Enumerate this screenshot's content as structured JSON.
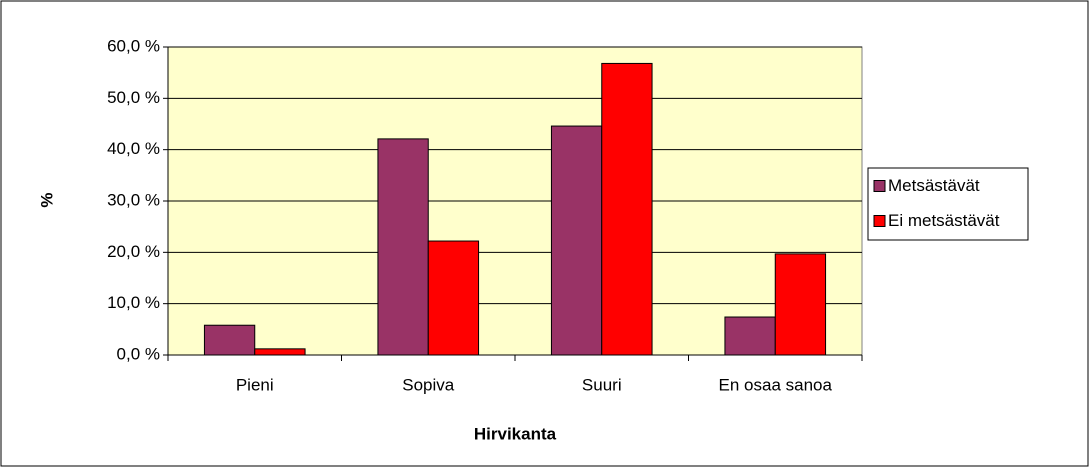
{
  "chart_data": {
    "type": "bar",
    "x_label": "Hirvikanta",
    "y_label": "%",
    "categories": [
      "Pieni",
      "Sopiva",
      "Suuri",
      "En osaa sanoa"
    ],
    "series": [
      {
        "name": "Metsästävät",
        "color": "#993366",
        "values": [
          5.8,
          42.1,
          44.6,
          7.4
        ]
      },
      {
        "name": "Ei metsästävät",
        "color": "#ff0000",
        "values": [
          1.2,
          22.2,
          56.8,
          19.7
        ]
      }
    ],
    "ylim": [
      0,
      60
    ],
    "yticks": [
      {
        "value": 0,
        "label": "0,0 %"
      },
      {
        "value": 10,
        "label": "10,0 %"
      },
      {
        "value": 20,
        "label": "20,0 %"
      },
      {
        "value": 30,
        "label": "30,0 %"
      },
      {
        "value": 40,
        "label": "40,0 %"
      },
      {
        "value": 50,
        "label": "50,0 %"
      },
      {
        "value": 60,
        "label": "60,0 %"
      }
    ],
    "grid": true,
    "legend": "right",
    "plot_background": "#ffffcc"
  }
}
